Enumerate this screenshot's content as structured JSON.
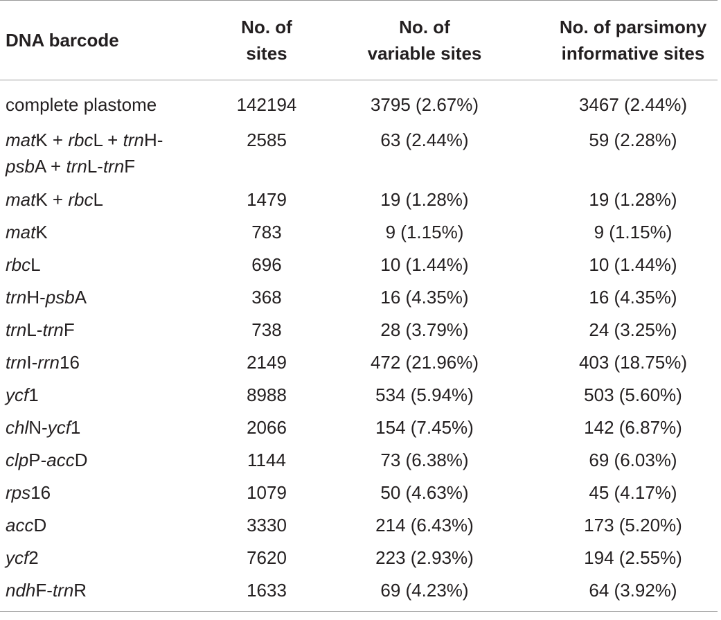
{
  "headers": {
    "barcode": "DNA barcode",
    "sites_line1": "No. of",
    "sites_line2": "sites",
    "variable_line1": "No. of",
    "variable_line2": "variable sites",
    "parsimony_line1": "No. of parsimony",
    "parsimony_line2": "informative sites"
  },
  "rows": [
    {
      "name": [
        {
          "t": "complete plastome",
          "i": false
        }
      ],
      "sites": "142194",
      "variable": "3795 (2.67%)",
      "parsimony": "3467 (2.44%)"
    },
    {
      "name": [
        {
          "t": "mat",
          "i": true
        },
        {
          "t": "K + ",
          "i": false
        },
        {
          "t": "rbc",
          "i": true
        },
        {
          "t": "L + ",
          "i": false
        },
        {
          "t": "trn",
          "i": true
        },
        {
          "t": "H-",
          "i": false
        },
        {
          "t": "br",
          "i": false
        },
        {
          "t": "psb",
          "i": true
        },
        {
          "t": "A + ",
          "i": false
        },
        {
          "t": "trn",
          "i": true
        },
        {
          "t": "L-",
          "i": false
        },
        {
          "t": "trn",
          "i": true
        },
        {
          "t": "F",
          "i": false
        }
      ],
      "sites": "2585",
      "variable": "63 (2.44%)",
      "parsimony": "59 (2.28%)"
    },
    {
      "name": [
        {
          "t": "mat",
          "i": true
        },
        {
          "t": "K + ",
          "i": false
        },
        {
          "t": "rbc",
          "i": true
        },
        {
          "t": "L",
          "i": false
        }
      ],
      "sites": "1479",
      "variable": "19 (1.28%)",
      "parsimony": "19 (1.28%)"
    },
    {
      "name": [
        {
          "t": "mat",
          "i": true
        },
        {
          "t": "K",
          "i": false
        }
      ],
      "sites": "783",
      "variable": "9 (1.15%)",
      "parsimony": "9 (1.15%)"
    },
    {
      "name": [
        {
          "t": "rbc",
          "i": true
        },
        {
          "t": "L",
          "i": false
        }
      ],
      "sites": "696",
      "variable": "10 (1.44%)",
      "parsimony": "10 (1.44%)"
    },
    {
      "name": [
        {
          "t": "trn",
          "i": true
        },
        {
          "t": "H-",
          "i": false
        },
        {
          "t": "psb",
          "i": true
        },
        {
          "t": "A",
          "i": false
        }
      ],
      "sites": "368",
      "variable": "16 (4.35%)",
      "parsimony": "16 (4.35%)"
    },
    {
      "name": [
        {
          "t": "trn",
          "i": true
        },
        {
          "t": "L-",
          "i": false
        },
        {
          "t": "trn",
          "i": true
        },
        {
          "t": "F",
          "i": false
        }
      ],
      "sites": "738",
      "variable": "28 (3.79%)",
      "parsimony": "24 (3.25%)"
    },
    {
      "name": [
        {
          "t": "trn",
          "i": true
        },
        {
          "t": "I-",
          "i": false
        },
        {
          "t": "rrn",
          "i": true
        },
        {
          "t": "16",
          "i": false
        }
      ],
      "sites": "2149",
      "variable": "472 (21.96%)",
      "parsimony": "403 (18.75%)"
    },
    {
      "name": [
        {
          "t": "ycf",
          "i": true
        },
        {
          "t": "1",
          "i": false
        }
      ],
      "sites": "8988",
      "variable": "534 (5.94%)",
      "parsimony": "503 (5.60%)"
    },
    {
      "name": [
        {
          "t": "chl",
          "i": true
        },
        {
          "t": "N-",
          "i": false
        },
        {
          "t": "ycf",
          "i": true
        },
        {
          "t": "1",
          "i": false
        }
      ],
      "sites": "2066",
      "variable": "154 (7.45%)",
      "parsimony": "142 (6.87%)"
    },
    {
      "name": [
        {
          "t": "clp",
          "i": true
        },
        {
          "t": "P-",
          "i": false
        },
        {
          "t": "acc",
          "i": true
        },
        {
          "t": "D",
          "i": false
        }
      ],
      "sites": "1144",
      "variable": "73 (6.38%)",
      "parsimony": "69 (6.03%)"
    },
    {
      "name": [
        {
          "t": "rps",
          "i": true
        },
        {
          "t": "16",
          "i": false
        }
      ],
      "sites": "1079",
      "variable": "50 (4.63%)",
      "parsimony": "45 (4.17%)"
    },
    {
      "name": [
        {
          "t": "acc",
          "i": true
        },
        {
          "t": "D",
          "i": false
        }
      ],
      "sites": "3330",
      "variable": "214 (6.43%)",
      "parsimony": "173 (5.20%)"
    },
    {
      "name": [
        {
          "t": "ycf",
          "i": true
        },
        {
          "t": "2",
          "i": false
        }
      ],
      "sites": "7620",
      "variable": "223 (2.93%)",
      "parsimony": "194 (2.55%)"
    },
    {
      "name": [
        {
          "t": "ndh",
          "i": true
        },
        {
          "t": "F-",
          "i": false
        },
        {
          "t": "trn",
          "i": true
        },
        {
          "t": "R",
          "i": false
        }
      ],
      "sites": "1633",
      "variable": "69 (4.23%)",
      "parsimony": "64 (3.92%)"
    }
  ]
}
